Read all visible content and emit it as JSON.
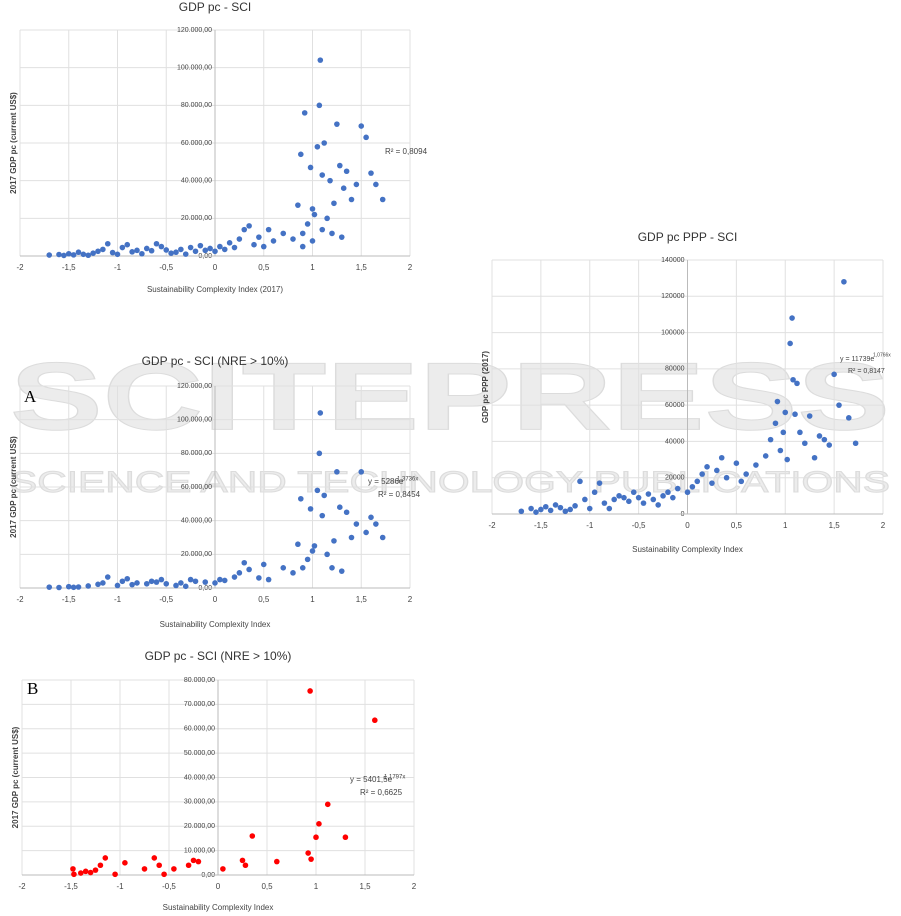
{
  "watermark": {
    "brand": "SCITEPRESS",
    "tagline": "SCIENCE AND TECHNOLOGY PUBLICATIONS"
  },
  "panel_labels": [
    "A",
    "B"
  ],
  "chart_data": [
    {
      "type": "scatter",
      "title": "GDP pc - SCI",
      "x_label": "Sustainability Complexity Index (2017)",
      "y_label": "2017 GDP pc (current US$)",
      "color": "#4472c4",
      "grid": true,
      "annotations": [
        "R² = 0,8094"
      ],
      "xlim": [
        -2,
        2
      ],
      "xticks": [
        -2,
        {
          "value": -1.5,
          "label": "-1,5"
        },
        -1,
        {
          "value": -0.5,
          "label": "-0,5"
        },
        0,
        {
          "value": 0.5,
          "label": "0,5"
        },
        1,
        {
          "value": 1.5,
          "label": "1,5"
        },
        2
      ],
      "ylim": [
        0,
        120000
      ],
      "yticks": [
        {
          "value": 0,
          "label": "0,00"
        },
        {
          "value": 20000,
          "label": "20.000,00"
        },
        {
          "value": 40000,
          "label": "40.000,00"
        },
        {
          "value": 60000,
          "label": "60.000,00"
        },
        {
          "value": 80000,
          "label": "80.000,00"
        },
        {
          "value": 100000,
          "label": "100.000,00"
        },
        {
          "value": 120000,
          "label": "120.000,00"
        }
      ],
      "x": [
        -1.7,
        -1.6,
        -1.55,
        -1.5,
        -1.45,
        -1.4,
        -1.35,
        -1.3,
        -1.25,
        -1.2,
        -1.15,
        -1.1,
        -1.05,
        -1.0,
        -0.95,
        -0.9,
        -0.85,
        -0.8,
        -0.75,
        -0.7,
        -0.65,
        -0.6,
        -0.55,
        -0.5,
        -0.45,
        -0.4,
        -0.35,
        -0.3,
        -0.25,
        -0.2,
        -0.15,
        -0.1,
        -0.05,
        0.0,
        0.05,
        0.1,
        0.15,
        0.2,
        0.25,
        0.3,
        0.35,
        0.4,
        0.45,
        0.5,
        0.55,
        0.6,
        0.7,
        0.8,
        0.85,
        0.88,
        0.9,
        0.92,
        0.95,
        0.98,
        1.0,
        1.02,
        1.05,
        1.07,
        1.08,
        1.1,
        1.12,
        1.15,
        1.18,
        1.2,
        1.22,
        1.25,
        1.28,
        1.3,
        1.32,
        1.35,
        1.4,
        1.45,
        1.5,
        1.55,
        1.6,
        1.65,
        1.72,
        0.9,
        1.0,
        1.1
      ],
      "values": [
        500,
        800,
        300,
        1200,
        600,
        2000,
        900,
        400,
        1500,
        2500,
        3500,
        6500,
        1800,
        900,
        4500,
        6000,
        2200,
        3000,
        1200,
        4000,
        2800,
        6500,
        5000,
        3200,
        1500,
        2000,
        3500,
        1000,
        4500,
        2500,
        5500,
        3000,
        4000,
        2500,
        5000,
        3500,
        7000,
        4500,
        9000,
        14000,
        16000,
        6000,
        10000,
        5000,
        14000,
        8000,
        12000,
        9000,
        27000,
        54000,
        12000,
        76000,
        17000,
        47000,
        25000,
        22000,
        58000,
        80000,
        104000,
        43000,
        60000,
        20000,
        40000,
        12000,
        28000,
        70000,
        48000,
        10000,
        36000,
        45000,
        30000,
        38000,
        69000,
        63000,
        44000,
        38000,
        30000,
        5000,
        8000,
        14000
      ]
    },
    {
      "type": "scatter",
      "title": "GDP pc - SCI (NRE > 10%)",
      "x_label": "Sustainability Complexity Index",
      "y_label": "2017 GDP pc (current US$)",
      "color": "#4472c4",
      "grid": true,
      "annotations": [
        "y = 5286e",
        "1,3736x",
        "R² = 0,8454"
      ],
      "xlim": [
        -2,
        2
      ],
      "xticks": [
        -2,
        {
          "value": -1.5,
          "label": "-1,5"
        },
        -1,
        {
          "value": -0.5,
          "label": "-0,5"
        },
        0,
        {
          "value": 0.5,
          "label": "0,5"
        },
        1,
        {
          "value": 1.5,
          "label": "1,5"
        },
        2
      ],
      "ylim": [
        0,
        120000
      ],
      "yticks": [
        {
          "value": 0,
          "label": "0,00"
        },
        {
          "value": 20000,
          "label": "20.000,00"
        },
        {
          "value": 40000,
          "label": "40.000,00"
        },
        {
          "value": 60000,
          "label": "60.000,00"
        },
        {
          "value": 80000,
          "label": "80.000,00"
        },
        {
          "value": 100000,
          "label": "100.000,00"
        },
        {
          "value": 120000,
          "label": "120.000,00"
        }
      ],
      "x": [
        -1.7,
        -1.6,
        -1.5,
        -1.45,
        -1.4,
        -1.3,
        -1.2,
        -1.15,
        -1.1,
        -1.0,
        -0.95,
        -0.9,
        -0.85,
        -0.8,
        -0.7,
        -0.65,
        -0.6,
        -0.55,
        -0.5,
        -0.4,
        -0.35,
        -0.3,
        -0.25,
        -0.2,
        -0.1,
        0.0,
        0.05,
        0.1,
        0.2,
        0.25,
        0.3,
        0.35,
        0.45,
        0.5,
        0.55,
        0.7,
        0.8,
        0.85,
        0.88,
        0.9,
        0.95,
        0.98,
        1.0,
        1.02,
        1.05,
        1.07,
        1.08,
        1.1,
        1.12,
        1.15,
        1.2,
        1.22,
        1.25,
        1.28,
        1.3,
        1.35,
        1.4,
        1.45,
        1.5,
        1.55,
        1.6,
        1.65,
        1.72
      ],
      "values": [
        500,
        300,
        800,
        400,
        600,
        1200,
        2200,
        3000,
        6500,
        1500,
        4000,
        5500,
        2000,
        3000,
        2500,
        4000,
        3500,
        5000,
        2500,
        1500,
        3000,
        1000,
        5000,
        4000,
        3500,
        3000,
        5000,
        4500,
        6500,
        9000,
        15000,
        11000,
        6000,
        14000,
        5000,
        12000,
        9000,
        26000,
        53000,
        12000,
        17000,
        47000,
        22000,
        25000,
        58000,
        80000,
        104000,
        43000,
        55000,
        20000,
        12000,
        28000,
        69000,
        48000,
        10000,
        45000,
        30000,
        38000,
        69000,
        33000,
        42000,
        38000,
        30000
      ]
    },
    {
      "type": "scatter",
      "title": "GDP pc PPP - SCI",
      "x_label": "Sustainability Complexity Index",
      "y_label": "GDP pc PPP (2017)",
      "color": "#4472c4",
      "grid": true,
      "annotations": [
        "y = 11739e",
        "1,0766x",
        "R² = 0,8147"
      ],
      "xlim": [
        -2,
        2
      ],
      "xticks": [
        -2,
        {
          "value": -1.5,
          "label": "-1,5"
        },
        -1,
        {
          "value": -0.5,
          "label": "-0,5"
        },
        0,
        {
          "value": 0.5,
          "label": "0,5"
        },
        1,
        {
          "value": 1.5,
          "label": "1,5"
        },
        2
      ],
      "ylim": [
        0,
        140000
      ],
      "yticks": [
        0,
        20000,
        40000,
        60000,
        80000,
        100000,
        120000,
        140000
      ],
      "x": [
        -1.7,
        -1.6,
        -1.55,
        -1.5,
        -1.45,
        -1.4,
        -1.35,
        -1.3,
        -1.25,
        -1.2,
        -1.15,
        -1.1,
        -1.05,
        -1.0,
        -0.95,
        -0.9,
        -0.85,
        -0.8,
        -0.75,
        -0.7,
        -0.65,
        -0.6,
        -0.55,
        -0.5,
        -0.45,
        -0.4,
        -0.35,
        -0.3,
        -0.25,
        -0.2,
        -0.15,
        -0.1,
        0.0,
        0.05,
        0.1,
        0.15,
        0.2,
        0.25,
        0.3,
        0.35,
        0.4,
        0.5,
        0.55,
        0.6,
        0.7,
        0.8,
        0.85,
        0.9,
        0.92,
        0.95,
        0.98,
        1.0,
        1.02,
        1.05,
        1.07,
        1.08,
        1.1,
        1.12,
        1.15,
        1.2,
        1.25,
        1.3,
        1.35,
        1.4,
        1.45,
        1.5,
        1.55,
        1.6,
        1.65,
        1.72
      ],
      "values": [
        1500,
        3000,
        1000,
        2500,
        4000,
        2000,
        5000,
        3500,
        1500,
        2500,
        4500,
        18000,
        8000,
        3000,
        12000,
        17000,
        6000,
        3000,
        8000,
        10000,
        9000,
        7000,
        12000,
        9000,
        6000,
        11000,
        8000,
        5000,
        10000,
        12000,
        9000,
        14000,
        12000,
        15000,
        18000,
        22000,
        26000,
        17000,
        24000,
        31000,
        20000,
        28000,
        18000,
        22000,
        27000,
        32000,
        41000,
        50000,
        62000,
        35000,
        45000,
        56000,
        30000,
        94000,
        108000,
        74000,
        55000,
        72000,
        45000,
        39000,
        54000,
        31000,
        43000,
        41000,
        38000,
        77000,
        60000,
        128000,
        53000,
        39000
      ]
    },
    {
      "type": "scatter",
      "title": "GDP pc - SCI (NRE > 10%)",
      "x_label": "Sustainability Complexity Index",
      "y_label": "2017 GDP pc (current US$)",
      "color": "#ff0000",
      "grid": true,
      "annotations": [
        "y = 5401,5e",
        "1,1797x",
        "R² = 0,6625"
      ],
      "xlim": [
        -2,
        2
      ],
      "xticks": [
        -2,
        {
          "value": -1.5,
          "label": "-1,5"
        },
        -1,
        {
          "value": -0.5,
          "label": "-0,5"
        },
        0,
        {
          "value": 0.5,
          "label": "0,5"
        },
        1,
        {
          "value": 1.5,
          "label": "1,5"
        },
        2
      ],
      "ylim": [
        0,
        80000
      ],
      "yticks": [
        {
          "value": 0,
          "label": "0,00"
        },
        {
          "value": 10000,
          "label": "10.000,00"
        },
        {
          "value": 20000,
          "label": "20.000,00"
        },
        {
          "value": 30000,
          "label": "30.000,00"
        },
        {
          "value": 40000,
          "label": "40.000,00"
        },
        {
          "value": 50000,
          "label": "50.000,00"
        },
        {
          "value": 60000,
          "label": "60.000,00"
        },
        {
          "value": 70000,
          "label": "70.000,00"
        },
        {
          "value": 80000,
          "label": "80.000,00"
        }
      ],
      "x": [
        -1.48,
        -1.47,
        -1.4,
        -1.35,
        -1.3,
        -1.25,
        -1.2,
        -1.15,
        -1.05,
        -0.95,
        -0.75,
        -0.65,
        -0.6,
        -0.55,
        -0.45,
        -0.3,
        -0.25,
        -0.2,
        0.05,
        0.25,
        0.28,
        0.35,
        0.6,
        0.92,
        0.94,
        0.95,
        1.0,
        1.03,
        1.12,
        1.3,
        1.6
      ],
      "values": [
        2500,
        300,
        800,
        1500,
        1000,
        2000,
        4000,
        7000,
        300,
        5000,
        2500,
        7000,
        4000,
        300,
        2500,
        4000,
        6000,
        5500,
        2500,
        6000,
        4000,
        16000,
        5500,
        9000,
        75500,
        6500,
        15500,
        21000,
        29000,
        15500,
        63500
      ]
    }
  ]
}
